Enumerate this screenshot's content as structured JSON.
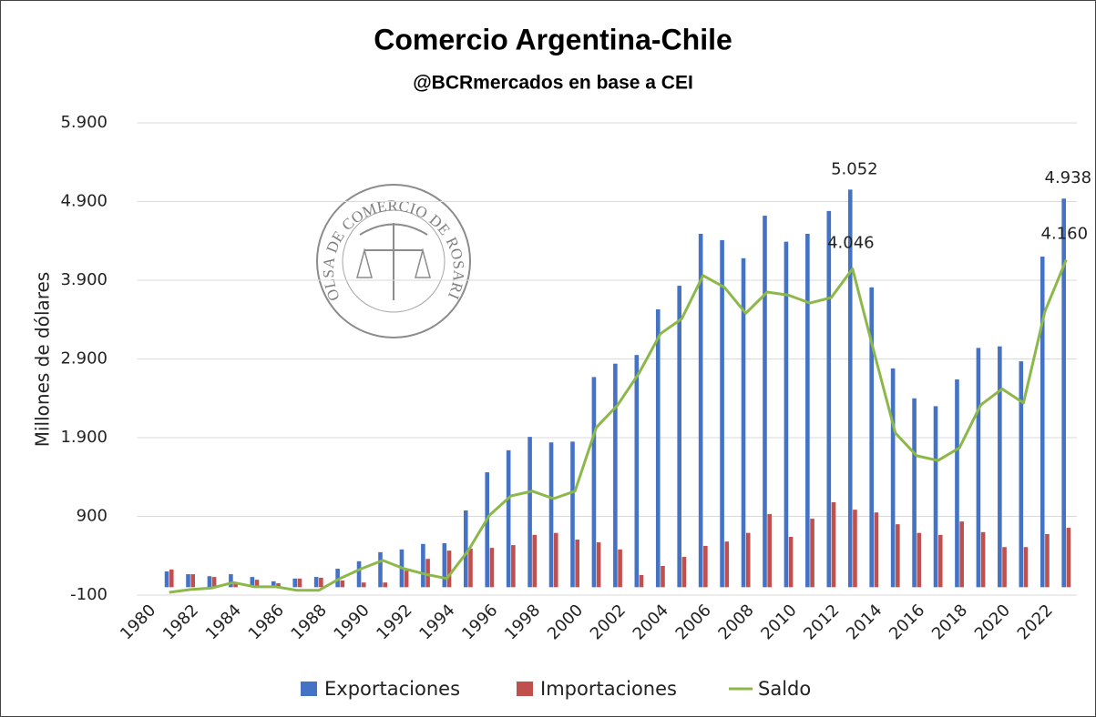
{
  "chart_data": {
    "type": "bar_line",
    "title": "Comercio Argentina-Chile",
    "subtitle": "@BCRmercados en base a CEI",
    "ylabel": "Millones de dólares",
    "watermark": "BOLSA DE COMERCIO DE ROSARIO",
    "categories": [
      "1980",
      null,
      "1982",
      null,
      "1984",
      null,
      "1986",
      null,
      "1988",
      null,
      "1990",
      null,
      "1992",
      null,
      "1994",
      null,
      "1996",
      null,
      "1998",
      null,
      "2000",
      null,
      "2002",
      null,
      "2004",
      null,
      "2006",
      null,
      "2008",
      null,
      "2010",
      null,
      "2012",
      null,
      "2014",
      null,
      "2016",
      null,
      "2018",
      null,
      "2020",
      null,
      "2022",
      null
    ],
    "series": [
      {
        "name": "Exportaciones",
        "type": "bar",
        "color": "#4472c4",
        "values": [
          null,
          200,
          165,
          140,
          165,
          130,
          75,
          110,
          130,
          235,
          330,
          445,
          480,
          550,
          560,
          975,
          1460,
          1740,
          1910,
          1840,
          1850,
          2670,
          2840,
          2950,
          3530,
          3830,
          4490,
          4410,
          4180,
          4720,
          4390,
          4490,
          4780,
          5052,
          3810,
          2780,
          2400,
          2300,
          2640,
          3040,
          3060,
          2870,
          4200,
          4938
        ],
        "value_labels": [
          null,
          null,
          null,
          null,
          null,
          null,
          null,
          null,
          null,
          null,
          null,
          null,
          null,
          null,
          null,
          null,
          null,
          null,
          null,
          null,
          null,
          null,
          null,
          null,
          null,
          null,
          null,
          null,
          null,
          null,
          null,
          null,
          null,
          "5.052",
          null,
          null,
          null,
          null,
          null,
          null,
          null,
          null,
          null,
          "4.938"
        ]
      },
      {
        "name": "Importaciones",
        "type": "bar",
        "color": "#c0504d",
        "values": [
          null,
          225,
          165,
          130,
          60,
          95,
          50,
          110,
          120,
          85,
          60,
          60,
          210,
          360,
          465,
          490,
          500,
          535,
          665,
          690,
          605,
          570,
          480,
          155,
          270,
          385,
          525,
          580,
          690,
          930,
          640,
          870,
          1080,
          985,
          950,
          800,
          690,
          665,
          835,
          700,
          510,
          510,
          675,
          755
        ]
      },
      {
        "name": "Saldo",
        "type": "line",
        "color": "#8cb84a",
        "values": [
          null,
          -65,
          -30,
          -10,
          60,
          5,
          5,
          -40,
          -40,
          110,
          235,
          340,
          235,
          165,
          110,
          465,
          915,
          1160,
          1220,
          1125,
          1220,
          2030,
          2315,
          2720,
          3220,
          3410,
          3960,
          3810,
          3480,
          3750,
          3710,
          3610,
          3680,
          4046,
          2990,
          1960,
          1670,
          1610,
          1770,
          2315,
          2520,
          2340,
          3500,
          4160
        ],
        "value_labels": [
          null,
          null,
          null,
          null,
          null,
          null,
          null,
          null,
          null,
          null,
          null,
          null,
          null,
          null,
          null,
          null,
          null,
          null,
          null,
          null,
          null,
          null,
          null,
          null,
          null,
          null,
          null,
          null,
          null,
          null,
          null,
          null,
          null,
          "4.046",
          null,
          null,
          null,
          null,
          null,
          null,
          null,
          null,
          null,
          "4.160"
        ]
      }
    ],
    "ylim": [
      -100,
      5900
    ],
    "yticks": [
      -100,
      900,
      {
        "value": 1900,
        "label": "1.900"
      },
      {
        "value": 2900,
        "label": "2.900"
      },
      {
        "value": 3900,
        "label": "3.900"
      },
      {
        "value": 4900,
        "label": "4.900"
      },
      {
        "value": 5900,
        "label": "5.900"
      }
    ],
    "grid": true,
    "legend": "bottom"
  }
}
